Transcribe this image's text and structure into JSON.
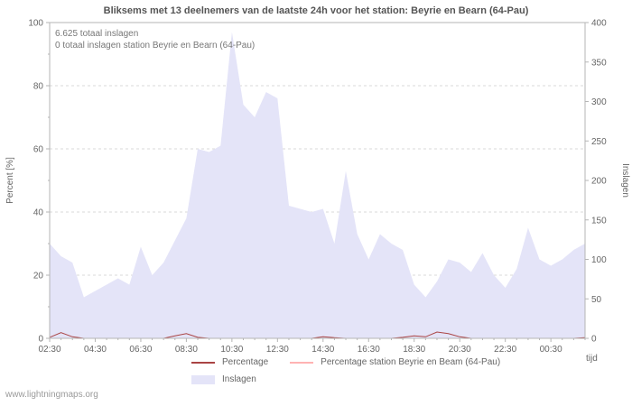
{
  "page": {
    "title": "Bliksems met 13 deelnemers van de laatste 24h voor het station: Beyrie en Bearn (64-Pau)",
    "watermark": "www.lightningmaps.org"
  },
  "annotations": {
    "line1": "6.625 totaal inslagen",
    "line2": "0 totaal inslagen station Beyrie en Bearn (64-Pau)"
  },
  "legend": {
    "percentage": "Percentage",
    "station": "Percentage station Beyrie en Beam (64-Pau)",
    "inslagen": "Inslagen"
  },
  "colors": {
    "area": "#e4e4f8",
    "percentage": "#aa4444",
    "station": "#ffb3b3",
    "frame": "#b5b5b5",
    "grid": "#d8d8d8",
    "text": "#666666"
  },
  "chart_data": {
    "type": "area",
    "title": "Bliksems met 13 deelnemers van de laatste 24h voor het station: Beyrie en Bearn (64-Pau)",
    "xlabel": "tijd",
    "grid": "dashed-horizontal",
    "legend_position": "bottom",
    "x": [
      "02:30",
      "03:00",
      "03:30",
      "04:00",
      "04:30",
      "05:00",
      "05:30",
      "06:00",
      "06:30",
      "07:00",
      "07:30",
      "08:00",
      "08:30",
      "09:00",
      "09:30",
      "10:00",
      "10:30",
      "11:00",
      "11:30",
      "12:00",
      "12:30",
      "13:00",
      "13:30",
      "14:00",
      "14:30",
      "15:00",
      "15:30",
      "16:00",
      "16:30",
      "17:00",
      "17:30",
      "18:00",
      "18:30",
      "19:00",
      "19:30",
      "20:00",
      "20:30",
      "21:00",
      "21:30",
      "22:00",
      "22:30",
      "23:00",
      "23:30",
      "00:00",
      "00:30",
      "01:00",
      "01:30",
      "02:00"
    ],
    "x_tick_labels": [
      "02:30",
      "04:30",
      "06:30",
      "08:30",
      "10:30",
      "12:30",
      "14:30",
      "16:30",
      "18:30",
      "20:30",
      "22:30",
      "00:30"
    ],
    "left_axis": {
      "label": "Percent  [%]",
      "range": [
        0,
        100
      ],
      "ticks": [
        0,
        20,
        40,
        60,
        80,
        100
      ]
    },
    "right_axis": {
      "label": "Inslagen",
      "range": [
        0,
        400
      ],
      "ticks": [
        0,
        50,
        100,
        150,
        200,
        250,
        300,
        350,
        400
      ]
    },
    "series": [
      {
        "name": "Inslagen",
        "axis": "right",
        "style": "filled-area",
        "values": [
          120,
          104,
          96,
          52,
          60,
          68,
          76,
          68,
          116,
          80,
          96,
          124,
          152,
          240,
          236,
          244,
          388,
          296,
          280,
          312,
          304,
          168,
          164,
          160,
          164,
          120,
          212,
          132,
          100,
          132,
          120,
          112,
          68,
          52,
          72,
          100,
          96,
          84,
          108,
          80,
          64,
          88,
          140,
          100,
          92,
          100,
          112,
          120
        ]
      },
      {
        "name": "Percentage",
        "axis": "left",
        "style": "line",
        "values": [
          0.3,
          1.8,
          0.5,
          0,
          0,
          0,
          0,
          0,
          0,
          0,
          0,
          0.8,
          1.5,
          0.3,
          0,
          0,
          0,
          0,
          0,
          0,
          0,
          0,
          0,
          0,
          0.5,
          0.2,
          0,
          0,
          0,
          0,
          0,
          0.3,
          0.8,
          0.5,
          2,
          1.5,
          0.5,
          0,
          0,
          0,
          0,
          0,
          0,
          0,
          0,
          0,
          0,
          0.2
        ]
      },
      {
        "name": "Percentage station Beyrie en Beam (64-Pau)",
        "axis": "left",
        "style": "line",
        "values": [
          0,
          0,
          0,
          0,
          0,
          0,
          0,
          0,
          0,
          0,
          0,
          0,
          0,
          0,
          0,
          0,
          0,
          0,
          0,
          0,
          0,
          0,
          0,
          0,
          0,
          0,
          0,
          0,
          0,
          0,
          0,
          0,
          0,
          0,
          0,
          0,
          0,
          0,
          0,
          0,
          0,
          0,
          0,
          0,
          0,
          0,
          0,
          0
        ]
      }
    ]
  }
}
